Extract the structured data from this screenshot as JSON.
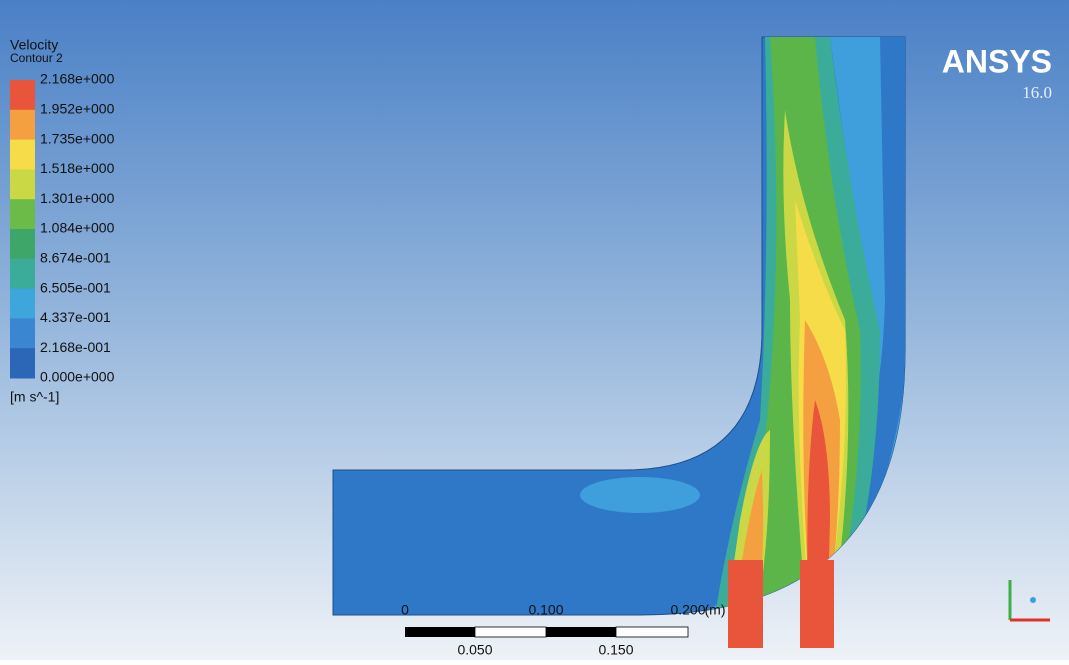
{
  "legend": {
    "title": "Velocity",
    "subtitle": "Contour 2",
    "levels": [
      "2.168e+000",
      "1.952e+000",
      "1.735e+000",
      "1.518e+000",
      "1.301e+000",
      "1.084e+000",
      "8.674e-001",
      "6.505e-001",
      "4.337e-001",
      "2.168e-001",
      "0.000e+000"
    ],
    "unit": "[m s^-1]"
  },
  "brand": {
    "name": "ANSYS",
    "version": "16.0"
  },
  "scale_bar": {
    "top_labels": [
      "0",
      "0.100",
      "0.200"
    ],
    "unit": "(m)",
    "bottom_labels": [
      "0.050",
      "0.150"
    ]
  }
}
